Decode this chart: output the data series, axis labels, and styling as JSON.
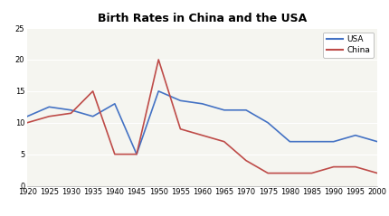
{
  "title": "Birth Rates in China and the USA",
  "years": [
    1920,
    1925,
    1930,
    1935,
    1940,
    1945,
    1950,
    1955,
    1960,
    1965,
    1970,
    1975,
    1980,
    1985,
    1990,
    1995,
    2000
  ],
  "usa": [
    11,
    12.5,
    12,
    11,
    13,
    5,
    15,
    13.5,
    13,
    12,
    12,
    10,
    7,
    7,
    7,
    8,
    7
  ],
  "china": [
    10,
    11,
    11.5,
    15,
    5,
    5,
    20,
    9,
    8,
    7,
    4,
    2,
    2,
    2,
    3,
    3,
    2
  ],
  "usa_color": "#4472C4",
  "china_color": "#BE4B48",
  "ylim": [
    0,
    25
  ],
  "yticks": [
    0,
    5,
    10,
    15,
    20,
    25
  ],
  "background_color": "#ffffff",
  "plot_bg_color": "#f5f5f0",
  "grid_color": "#ffffff",
  "title_fontsize": 9,
  "tick_fontsize": 6,
  "legend_labels": [
    "USA",
    "China"
  ]
}
